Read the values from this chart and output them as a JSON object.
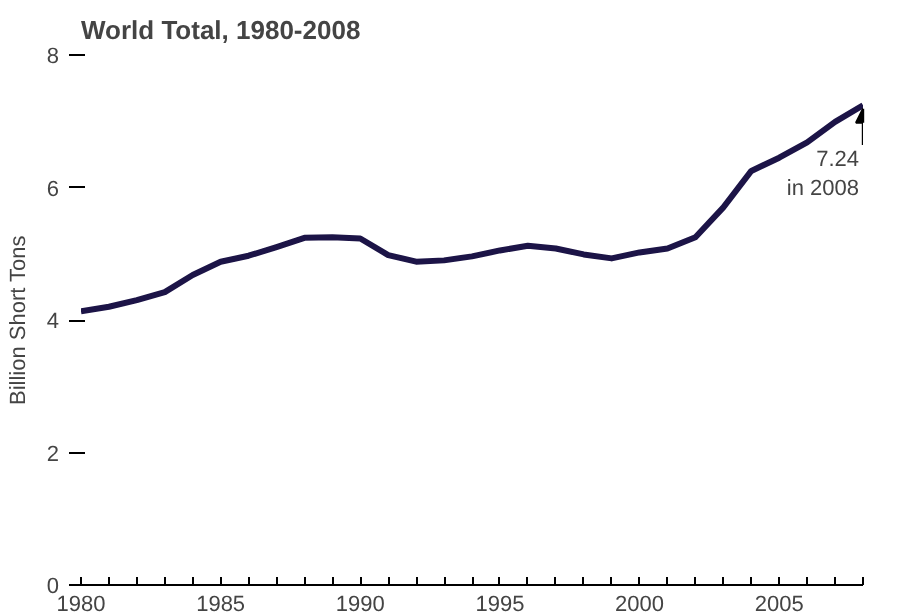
{
  "chart_data": {
    "type": "line",
    "title": "World Total, 1980-2008",
    "ylabel": "Billion Short Tons",
    "x": [
      1980,
      1981,
      1982,
      1983,
      1984,
      1985,
      1986,
      1987,
      1988,
      1989,
      1990,
      1991,
      1992,
      1993,
      1994,
      1995,
      1996,
      1997,
      1998,
      1999,
      2000,
      2001,
      2002,
      2003,
      2004,
      2005,
      2006,
      2007,
      2008
    ],
    "series": [
      {
        "color": "#1c1447",
        "values": [
          4.13,
          4.2,
          4.3,
          4.42,
          4.68,
          4.88,
          4.97,
          5.1,
          5.24,
          5.25,
          5.23,
          4.98,
          4.88,
          4.9,
          4.96,
          5.05,
          5.12,
          5.08,
          4.99,
          4.93,
          5.02,
          5.08,
          5.25,
          5.7,
          6.25,
          6.45,
          6.68,
          6.99,
          7.24
        ]
      }
    ],
    "xlim": [
      1980,
      2008
    ],
    "ylim": [
      0,
      8
    ],
    "xticks": [
      1980,
      {
        "value": 1981,
        "label": null
      },
      {
        "value": 1982,
        "label": null
      },
      {
        "value": 1983,
        "label": null
      },
      {
        "value": 1984,
        "label": null
      },
      1985,
      {
        "value": 1986,
        "label": null
      },
      {
        "value": 1987,
        "label": null
      },
      {
        "value": 1988,
        "label": null
      },
      {
        "value": 1989,
        "label": null
      },
      1990,
      {
        "value": 1991,
        "label": null
      },
      {
        "value": 1992,
        "label": null
      },
      {
        "value": 1993,
        "label": null
      },
      {
        "value": 1994,
        "label": null
      },
      1995,
      {
        "value": 1996,
        "label": null
      },
      {
        "value": 1997,
        "label": null
      },
      {
        "value": 1998,
        "label": null
      },
      {
        "value": 1999,
        "label": null
      },
      2000,
      {
        "value": 2001,
        "label": null
      },
      {
        "value": 2002,
        "label": null
      },
      {
        "value": 2003,
        "label": null
      },
      {
        "value": 2004,
        "label": null
      },
      2005,
      {
        "value": 2006,
        "label": null
      },
      {
        "value": 2007,
        "label": null
      },
      {
        "value": 2008,
        "label": null
      }
    ],
    "yticks": [
      0,
      2,
      4,
      6,
      8
    ],
    "annotations": [
      {
        "text": "7.24\nin 2008",
        "x": 2008,
        "y": 7.24
      }
    ],
    "grid": false,
    "marker": "none",
    "line_style": "solid"
  }
}
